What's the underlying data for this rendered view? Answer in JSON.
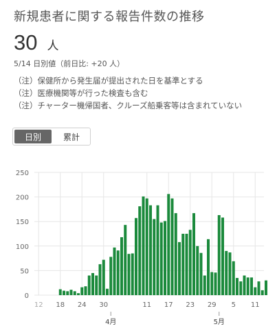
{
  "header": {
    "title": "新規患者に関する報告件数の推移",
    "value": "30",
    "unit": "人",
    "sub": "5/14 日別値（前日比: +20 人）"
  },
  "notes": [
    "（注）保健所から発生届が提出された日を基準とする",
    "（注）医療機関等が行った検査も含む",
    "（注）チャーター機帰国者、クルーズ船乗客等は含まれていない"
  ],
  "toggle": {
    "options": [
      "日別",
      "累計"
    ],
    "selected": "日別"
  },
  "colors": {
    "bar": "#1b8a3c",
    "grid": "#e6e6e6",
    "axis_text": "#666",
    "faded_text": "#aaa"
  },
  "chart_data": {
    "type": "bar",
    "title": "",
    "xlabel": "",
    "ylabel": "",
    "ylim": [
      0,
      250
    ],
    "yticks": [
      0,
      50,
      100,
      150,
      200,
      250
    ],
    "grid": true,
    "categories": [
      "3/12",
      "3/13",
      "3/14",
      "3/15",
      "3/16",
      "3/17",
      "3/18",
      "3/19",
      "3/20",
      "3/21",
      "3/22",
      "3/23",
      "3/24",
      "3/25",
      "3/26",
      "3/27",
      "3/28",
      "3/29",
      "3/30",
      "3/31",
      "4/1",
      "4/2",
      "4/3",
      "4/4",
      "4/5",
      "4/6",
      "4/7",
      "4/8",
      "4/9",
      "4/10",
      "4/11",
      "4/12",
      "4/13",
      "4/14",
      "4/15",
      "4/16",
      "4/17",
      "4/18",
      "4/19",
      "4/20",
      "4/21",
      "4/22",
      "4/23",
      "4/24",
      "4/25",
      "4/26",
      "4/27",
      "4/28",
      "4/29",
      "4/30",
      "5/1",
      "5/2",
      "5/3",
      "5/4",
      "5/5",
      "5/6",
      "5/7",
      "5/8",
      "5/9",
      "5/10",
      "5/11",
      "5/12",
      "5/13",
      "5/14"
    ],
    "values": [
      0,
      0,
      0,
      0,
      0,
      0,
      12,
      9,
      8,
      11,
      8,
      4,
      16,
      18,
      40,
      45,
      40,
      63,
      72,
      13,
      78,
      97,
      91,
      118,
      143,
      84,
      85,
      157,
      181,
      201,
      197,
      183,
      155,
      183,
      148,
      151,
      206,
      197,
      167,
      108,
      125,
      125,
      133,
      167,
      100,
      86,
      40,
      114,
      47,
      46,
      163,
      158,
      90,
      87,
      69,
      35,
      28,
      40,
      36,
      36,
      16,
      28,
      10,
      30
    ],
    "x_tick_labels": [
      {
        "index": 0,
        "label": "12",
        "faded": true
      },
      {
        "index": 6,
        "label": "18",
        "faded": false
      },
      {
        "index": 12,
        "label": "24",
        "faded": false
      },
      {
        "index": 18,
        "label": "30",
        "faded": false
      },
      {
        "index": 30,
        "label": "11",
        "faded": false
      },
      {
        "index": 36,
        "label": "17",
        "faded": false
      },
      {
        "index": 42,
        "label": "23",
        "faded": false
      },
      {
        "index": 48,
        "label": "29",
        "faded": false
      },
      {
        "index": 54,
        "label": "5",
        "faded": false
      },
      {
        "index": 60,
        "label": "11",
        "faded": false
      }
    ],
    "month_labels": [
      {
        "index": 20,
        "label": "4月"
      },
      {
        "index": 50,
        "label": "5月"
      }
    ]
  }
}
